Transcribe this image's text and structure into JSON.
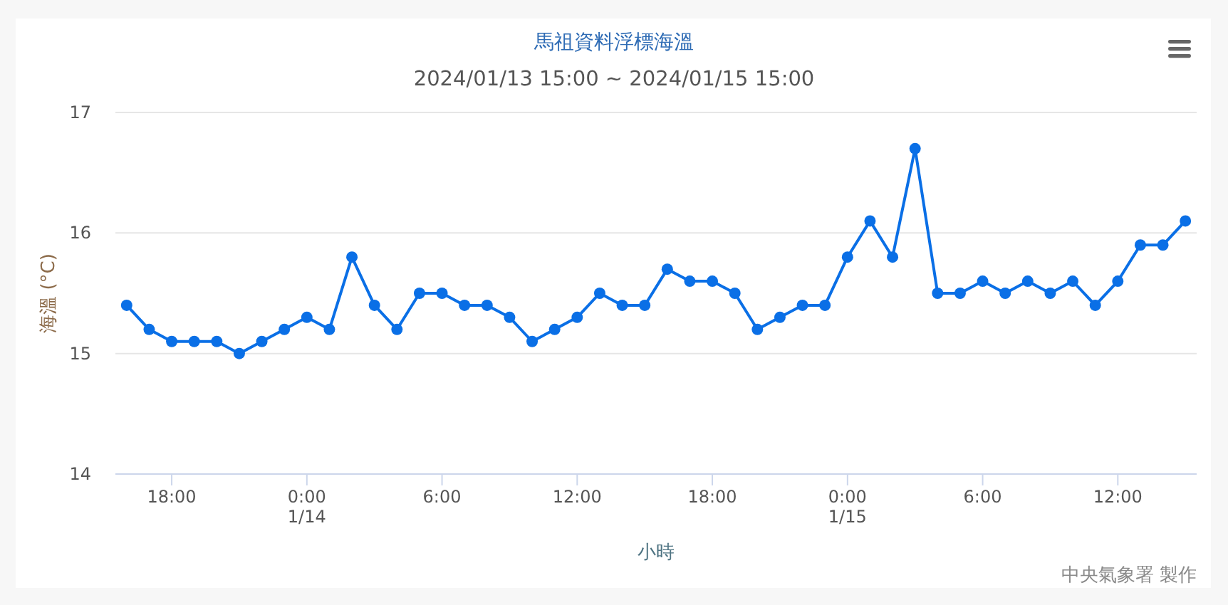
{
  "chart_data": {
    "type": "line",
    "title": "馬祖資料浮標海溫",
    "subtitle": "2024/01/13 15:00 ~ 2024/01/15 15:00",
    "xlabel": "小時",
    "ylabel": "海溫 (°C)",
    "annotations": [
      "中央氣象署 製作"
    ],
    "x": [
      "2024-01-13T16:00",
      "2024-01-13T17:00",
      "2024-01-13T18:00",
      "2024-01-13T19:00",
      "2024-01-13T20:00",
      "2024-01-13T21:00",
      "2024-01-13T22:00",
      "2024-01-13T23:00",
      "2024-01-14T00:00",
      "2024-01-14T01:00",
      "2024-01-14T02:00",
      "2024-01-14T03:00",
      "2024-01-14T04:00",
      "2024-01-14T05:00",
      "2024-01-14T06:00",
      "2024-01-14T07:00",
      "2024-01-14T08:00",
      "2024-01-14T09:00",
      "2024-01-14T10:00",
      "2024-01-14T11:00",
      "2024-01-14T12:00",
      "2024-01-14T13:00",
      "2024-01-14T14:00",
      "2024-01-14T15:00",
      "2024-01-14T16:00",
      "2024-01-14T17:00",
      "2024-01-14T18:00",
      "2024-01-14T19:00",
      "2024-01-14T20:00",
      "2024-01-14T21:00",
      "2024-01-14T22:00",
      "2024-01-14T23:00",
      "2024-01-15T00:00",
      "2024-01-15T01:00",
      "2024-01-15T02:00",
      "2024-01-15T03:00",
      "2024-01-15T04:00",
      "2024-01-15T05:00",
      "2024-01-15T06:00",
      "2024-01-15T07:00",
      "2024-01-15T08:00",
      "2024-01-15T09:00",
      "2024-01-15T10:00",
      "2024-01-15T11:00",
      "2024-01-15T12:00",
      "2024-01-15T13:00",
      "2024-01-15T14:00",
      "2024-01-15T15:00"
    ],
    "series": [
      {
        "color": "#0a6fe6",
        "values": [
          15.4,
          15.2,
          15.1,
          15.1,
          15.1,
          15.0,
          15.1,
          15.2,
          15.3,
          15.2,
          15.8,
          15.4,
          15.2,
          15.5,
          15.5,
          15.4,
          15.4,
          15.3,
          15.1,
          15.2,
          15.3,
          15.5,
          15.4,
          15.4,
          15.7,
          15.6,
          15.6,
          15.5,
          15.2,
          15.3,
          15.4,
          15.4,
          15.8,
          16.1,
          15.8,
          16.7,
          15.5,
          15.5,
          15.6,
          15.5,
          15.6,
          15.5,
          15.6,
          15.4,
          15.6,
          15.9,
          15.9,
          16.1
        ]
      }
    ],
    "xlim": [
      "2024-01-13T15:30",
      "2024-01-15T15:30"
    ],
    "xticks": [
      {
        "value": "2024-01-13T18:00",
        "label": "18:00"
      },
      {
        "value": "2024-01-14T00:00",
        "label": "0:00\n1/14"
      },
      {
        "value": "2024-01-14T06:00",
        "label": "6:00"
      },
      {
        "value": "2024-01-14T12:00",
        "label": "12:00"
      },
      {
        "value": "2024-01-14T18:00",
        "label": "18:00"
      },
      {
        "value": "2024-01-15T00:00",
        "label": "0:00\n1/15"
      },
      {
        "value": "2024-01-15T06:00",
        "label": "6:00"
      },
      {
        "value": "2024-01-15T12:00",
        "label": "12:00"
      }
    ],
    "ylim": [
      14,
      17
    ],
    "yticks": [
      14,
      15,
      16,
      17
    ],
    "grid": "y",
    "marker": "circle",
    "line_style": "solid"
  }
}
